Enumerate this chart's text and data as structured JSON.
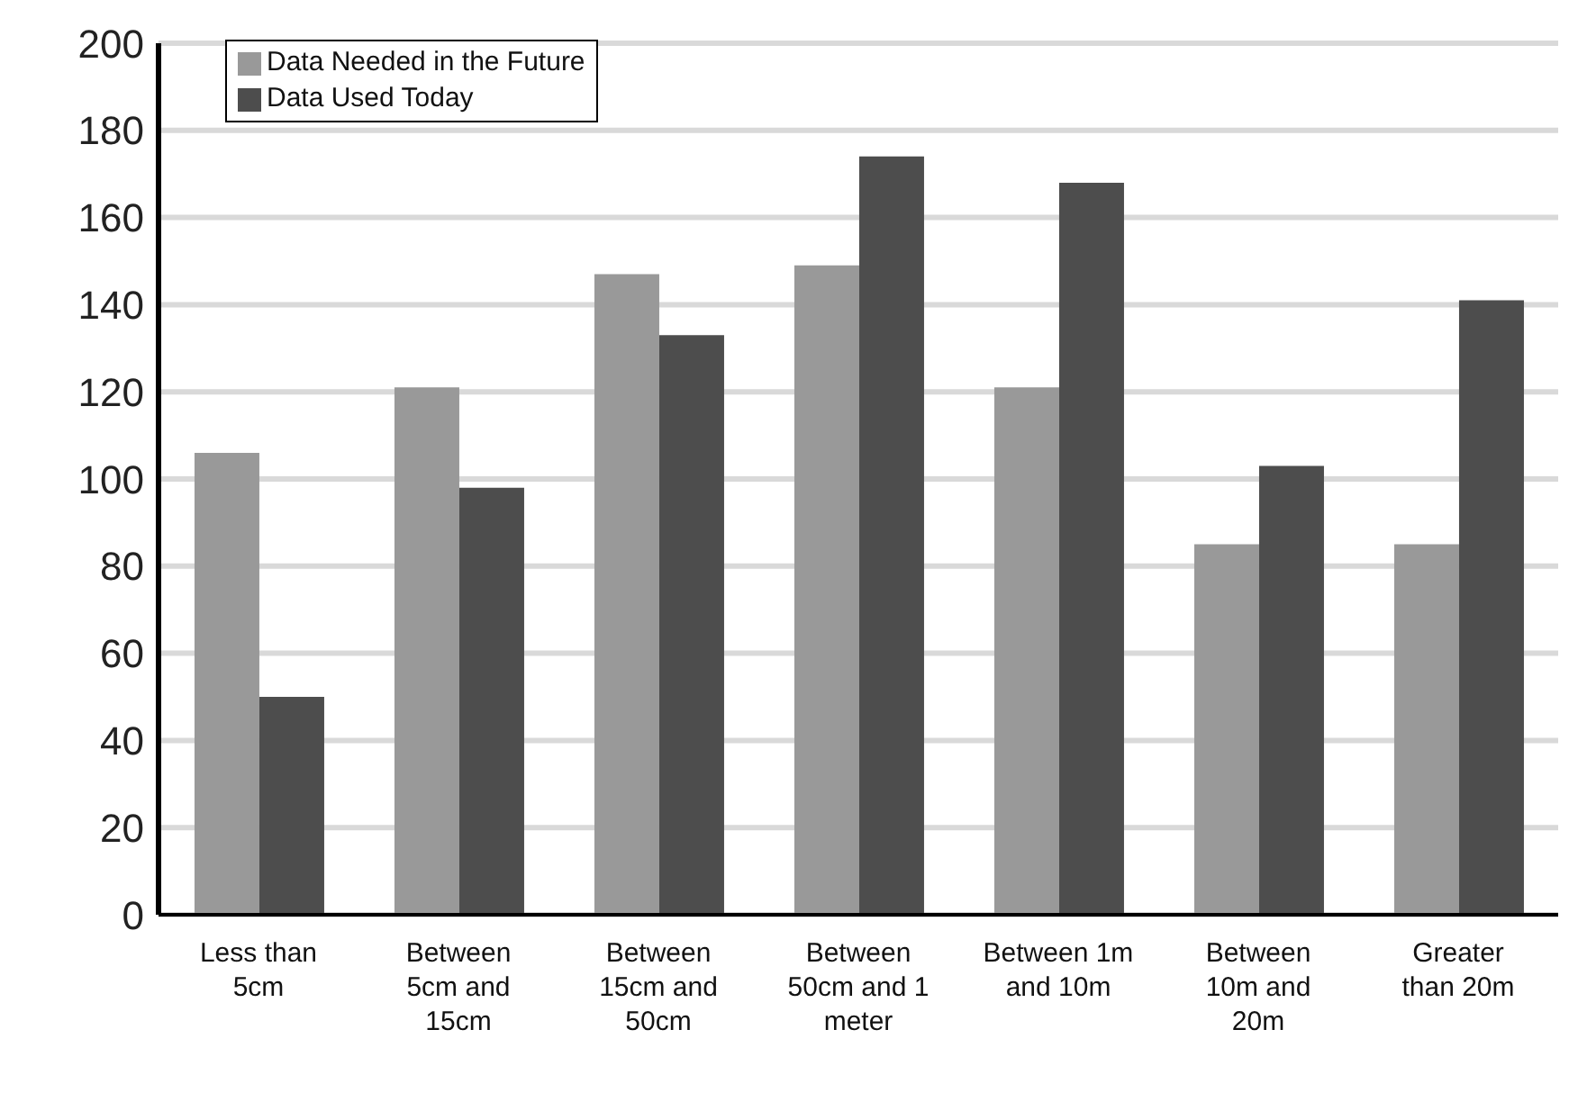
{
  "chart_data": {
    "type": "bar",
    "categories": [
      "Less than 5cm",
      "Between 5cm and 15cm",
      "Between 15cm and 50cm",
      "Between 50cm and 1 meter",
      "Between 1m and 10m",
      "Between 10m and 20m",
      "Greater than 20m"
    ],
    "series": [
      {
        "name": "Data Needed in the Future",
        "color": "#999999",
        "values": [
          106,
          121,
          147,
          149,
          121,
          85,
          85
        ]
      },
      {
        "name": "Data Used Today",
        "color": "#4d4d4d",
        "values": [
          50,
          98,
          133,
          174,
          168,
          103,
          141
        ]
      }
    ],
    "ylim": [
      0,
      200
    ],
    "yticks": [
      0,
      20,
      40,
      60,
      80,
      100,
      120,
      140,
      160,
      180,
      200
    ],
    "grid": "y",
    "legend": "top left"
  }
}
